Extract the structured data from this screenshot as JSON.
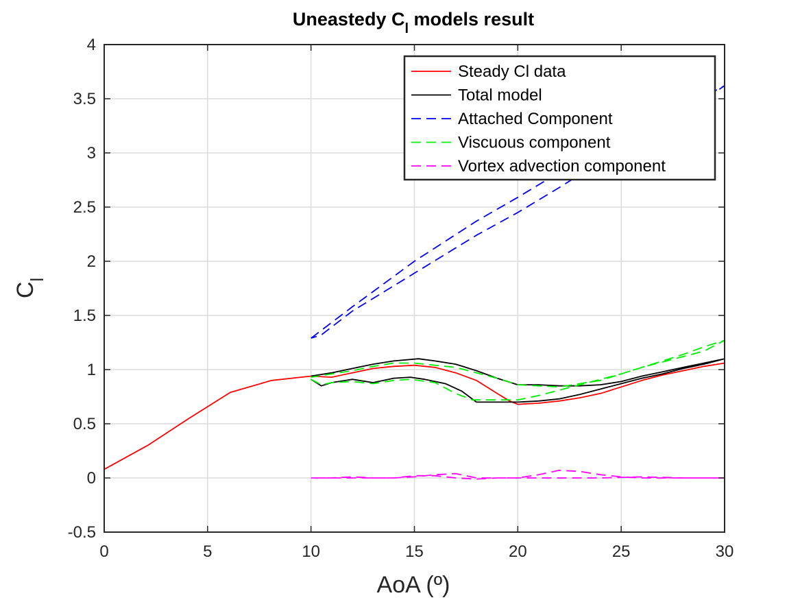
{
  "chart_data": {
    "type": "line",
    "title": "Uneastedy C",
    "title_sub": "l",
    "title_rest": " models result",
    "xlabel": "AoA (º)",
    "ylabel": "C",
    "ylabel_sub": "l",
    "xlim": [
      0,
      30
    ],
    "ylim": [
      -0.5,
      4
    ],
    "xticks": [
      0,
      5,
      10,
      15,
      20,
      25,
      30
    ],
    "xtick_labels": [
      "0",
      "5",
      "10",
      "15",
      "20",
      "25",
      "30"
    ],
    "yticks": [
      -0.5,
      0,
      0.5,
      1,
      1.5,
      2,
      2.5,
      3,
      3.5,
      4
    ],
    "ytick_labels": [
      "-0.5",
      "0",
      "0.5",
      "1",
      "1.5",
      "2",
      "2.5",
      "3",
      "3.5",
      "4"
    ],
    "grid": true,
    "legend_position": "top-right",
    "series": [
      {
        "name": "Steady Cl data",
        "color": "#ff0000",
        "dash": "solid",
        "points": [
          [
            0,
            0.08
          ],
          [
            2.1,
            0.3
          ],
          [
            4.1,
            0.55
          ],
          [
            6.1,
            0.79
          ],
          [
            8.1,
            0.9
          ],
          [
            10,
            0.94
          ],
          [
            11,
            0.93
          ],
          [
            12,
            0.97
          ],
          [
            13,
            1.01
          ],
          [
            14,
            1.03
          ],
          [
            15,
            1.04
          ],
          [
            16,
            1.02
          ],
          [
            17,
            0.97
          ],
          [
            18,
            0.9
          ],
          [
            19,
            0.78
          ],
          [
            19.6,
            0.71
          ],
          [
            20,
            0.68
          ],
          [
            21,
            0.69
          ],
          [
            22,
            0.71
          ],
          [
            23,
            0.74
          ],
          [
            24,
            0.78
          ],
          [
            25,
            0.84
          ],
          [
            26,
            0.9
          ],
          [
            27,
            0.95
          ],
          [
            28,
            0.99
          ],
          [
            29,
            1.03
          ],
          [
            30,
            1.06
          ]
        ]
      },
      {
        "name": "Total model",
        "color": "#000000",
        "dash": "solid",
        "points": [
          [
            10,
            0.91
          ],
          [
            10.5,
            0.85
          ],
          [
            11,
            0.88
          ],
          [
            12,
            0.91
          ],
          [
            13,
            0.88
          ],
          [
            14,
            0.92
          ],
          [
            14.8,
            0.93
          ],
          [
            15.5,
            0.91
          ],
          [
            16.5,
            0.87
          ],
          [
            17.3,
            0.8
          ],
          [
            18,
            0.7
          ],
          [
            19,
            0.7
          ],
          [
            20,
            0.7
          ],
          [
            21,
            0.71
          ],
          [
            22,
            0.73
          ],
          [
            23,
            0.77
          ],
          [
            24,
            0.82
          ],
          [
            25,
            0.87
          ],
          [
            26,
            0.92
          ],
          [
            27,
            0.96
          ],
          [
            28,
            1.01
          ],
          [
            29,
            1.05
          ],
          [
            30,
            1.1
          ],
          [
            29,
            1.06
          ],
          [
            28,
            1.02
          ],
          [
            27,
            0.98
          ],
          [
            26,
            0.94
          ],
          [
            25,
            0.89
          ],
          [
            24,
            0.86
          ],
          [
            23,
            0.85
          ],
          [
            22,
            0.85
          ],
          [
            21,
            0.86
          ],
          [
            20,
            0.86
          ],
          [
            19,
            0.92
          ],
          [
            18,
            0.99
          ],
          [
            17,
            1.05
          ],
          [
            16,
            1.08
          ],
          [
            15.2,
            1.1
          ],
          [
            14,
            1.08
          ],
          [
            13,
            1.05
          ],
          [
            12,
            1.01
          ],
          [
            11,
            0.97
          ],
          [
            10,
            0.94
          ]
        ]
      },
      {
        "name": "Attached Component",
        "color": "#0000ff",
        "dash": "dashed",
        "points": [
          [
            10,
            1.29
          ],
          [
            12,
            1.58
          ],
          [
            15,
            2.0
          ],
          [
            18,
            2.37
          ],
          [
            20,
            2.59
          ],
          [
            22,
            2.82
          ],
          [
            25,
            3.17
          ],
          [
            28,
            3.42
          ],
          [
            30,
            3.62
          ],
          [
            28,
            3.36
          ],
          [
            25,
            3.04
          ],
          [
            22,
            2.68
          ],
          [
            20,
            2.45
          ],
          [
            18,
            2.24
          ],
          [
            15,
            1.89
          ],
          [
            12,
            1.54
          ],
          [
            10.5,
            1.32
          ],
          [
            10,
            1.29
          ]
        ]
      },
      {
        "name": "Viscuous component",
        "color": "#00ee00",
        "dash": "dashed",
        "points": [
          [
            10,
            0.91
          ],
          [
            10.5,
            0.86
          ],
          [
            11,
            0.88
          ],
          [
            12,
            0.89
          ],
          [
            13,
            0.87
          ],
          [
            14,
            0.9
          ],
          [
            14.8,
            0.91
          ],
          [
            16,
            0.88
          ],
          [
            17,
            0.78
          ],
          [
            17.8,
            0.72
          ],
          [
            19,
            0.72
          ],
          [
            20,
            0.72
          ],
          [
            21,
            0.76
          ],
          [
            22,
            0.81
          ],
          [
            23,
            0.86
          ],
          [
            24,
            0.91
          ],
          [
            25,
            0.96
          ],
          [
            26,
            1.02
          ],
          [
            27,
            1.07
          ],
          [
            28,
            1.12
          ],
          [
            29,
            1.17
          ],
          [
            30,
            1.27
          ],
          [
            29,
            1.21
          ],
          [
            28,
            1.14
          ],
          [
            27,
            1.08
          ],
          [
            26,
            1.02
          ],
          [
            25,
            0.96
          ],
          [
            24,
            0.9
          ],
          [
            23,
            0.87
          ],
          [
            22,
            0.84
          ],
          [
            21,
            0.85
          ],
          [
            20,
            0.86
          ],
          [
            19,
            0.92
          ],
          [
            18,
            0.97
          ],
          [
            17,
            1.02
          ],
          [
            16,
            1.04
          ],
          [
            15,
            1.06
          ],
          [
            14,
            1.06
          ],
          [
            13,
            1.03
          ],
          [
            12,
            0.99
          ],
          [
            11,
            0.96
          ],
          [
            10,
            0.93
          ]
        ]
      },
      {
        "name": "Vortex advection component",
        "color": "#ff00ff",
        "dash": "dashed",
        "points": [
          [
            10,
            0.0
          ],
          [
            11,
            0.0
          ],
          [
            12,
            0.01
          ],
          [
            13,
            0.0
          ],
          [
            14,
            0.0
          ],
          [
            15,
            0.02
          ],
          [
            16,
            0.02
          ],
          [
            17,
            0.0
          ],
          [
            18,
            -0.01
          ],
          [
            19,
            0.0
          ],
          [
            20,
            0.0
          ],
          [
            21,
            0.03
          ],
          [
            22,
            0.07
          ],
          [
            23,
            0.06
          ],
          [
            24,
            0.03
          ],
          [
            25,
            0.01
          ],
          [
            26,
            0.0
          ],
          [
            27,
            0.0
          ],
          [
            28,
            0.0
          ],
          [
            29,
            0.0
          ],
          [
            30,
            0.0
          ],
          [
            28,
            0.0
          ],
          [
            26,
            0.01
          ],
          [
            24,
            0.0
          ],
          [
            22,
            0.0
          ],
          [
            20,
            0.0
          ],
          [
            19,
            0.0
          ],
          [
            18,
            0.0
          ],
          [
            17,
            0.04
          ],
          [
            16,
            0.03
          ],
          [
            15,
            0.01
          ],
          [
            14,
            0.0
          ],
          [
            13,
            0.0
          ],
          [
            12,
            0.0
          ],
          [
            11,
            0.0
          ],
          [
            10,
            0.0
          ]
        ]
      }
    ]
  }
}
